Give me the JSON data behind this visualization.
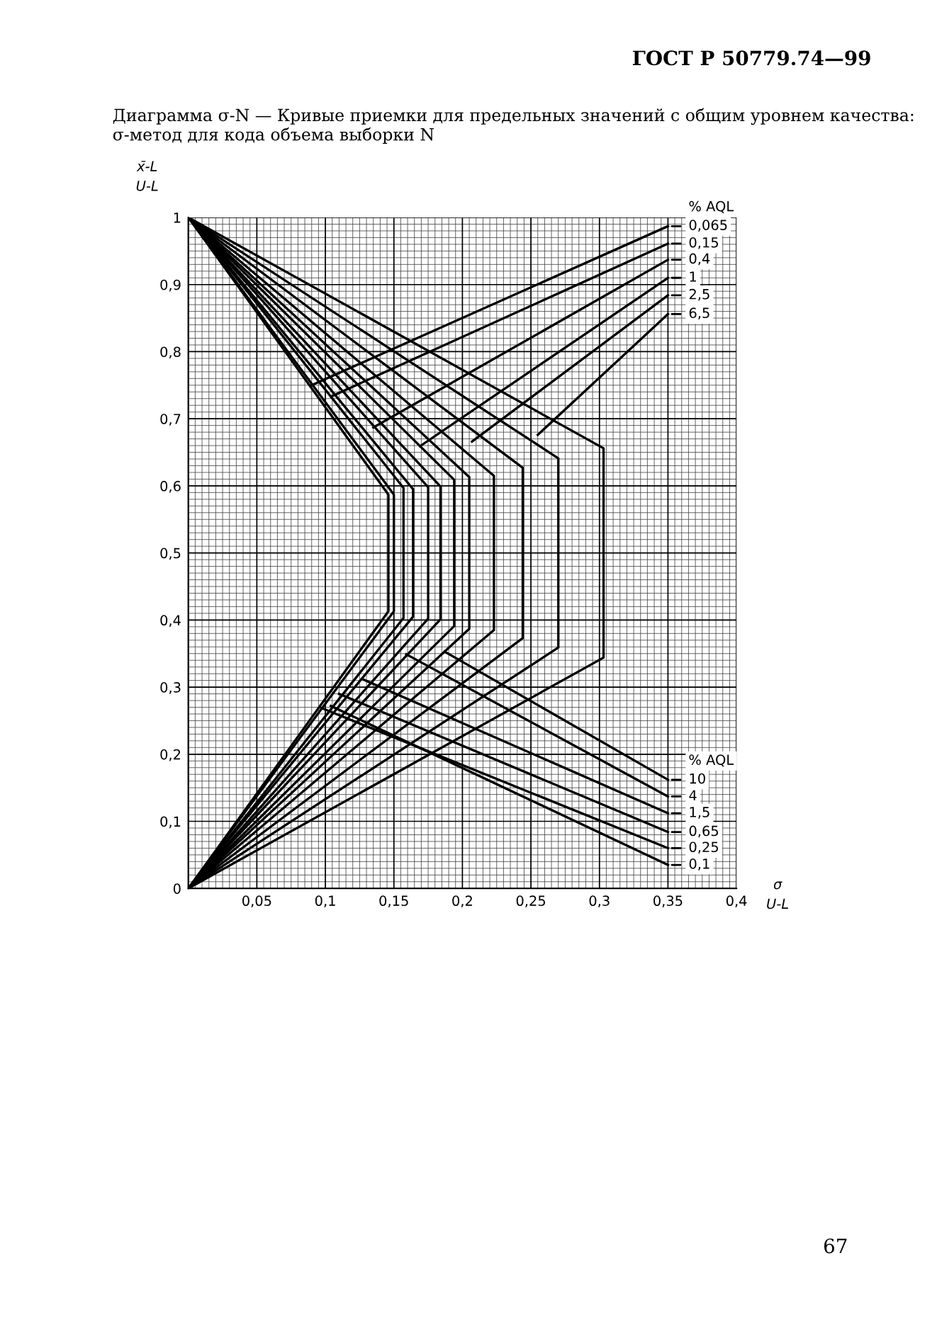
{
  "chart_data": {
    "type": "line",
    "title": "Диаграмма σ-N — Кривые приемки для предельных значений с общим уровнем качества: σ-метод для кода объема выборки N",
    "ylabel": "x̄-L\nU-L",
    "xlabel": "σ\nU-L",
    "annotations": [
      "ГОСТ Р 50779.74—99",
      "% AQL",
      "% AQL",
      "67"
    ],
    "xlim": [
      0,
      0.4
    ],
    "ylim": [
      0,
      1
    ],
    "xticks": [
      {
        "value": 0.05,
        "label": "0,05"
      },
      {
        "value": 0.1,
        "label": "0,1"
      },
      {
        "value": 0.15,
        "label": "0,15"
      },
      {
        "value": 0.2,
        "label": "0,2"
      },
      {
        "value": 0.25,
        "label": "0,25"
      },
      {
        "value": 0.3,
        "label": "0,3"
      },
      {
        "value": 0.35,
        "label": "0,35"
      },
      {
        "value": 0.4,
        "label": "0,4"
      }
    ],
    "yticks": [
      0,
      {
        "value": 0.1,
        "label": "0,1"
      },
      {
        "value": 0.2,
        "label": "0,2"
      },
      {
        "value": 0.3,
        "label": "0,3"
      },
      {
        "value": 0.4,
        "label": "0,4"
      },
      {
        "value": 0.5,
        "label": "0,5"
      },
      {
        "value": 0.6,
        "label": "0,6"
      },
      {
        "value": 0.7,
        "label": "0,7"
      },
      {
        "value": 0.8,
        "label": "0,8"
      },
      {
        "value": 0.9,
        "label": "0,9"
      },
      1
    ],
    "grid": true,
    "legend": "right",
    "marker": "none",
    "line_style": "solid",
    "series": [
      {
        "name": "0,065",
        "color": "#000000",
        "x": [
          0,
          0.146,
          0.146,
          0,
          null,
          0.09,
          0.35
        ],
        "values": [
          1,
          0.587,
          0.413,
          0,
          null,
          0.75,
          0.987
        ]
      },
      {
        "name": "0,1",
        "color": "#000000",
        "x": [
          0,
          0.15,
          0.15,
          0,
          null,
          0.104,
          0.35
        ],
        "values": [
          1,
          0.587,
          0.413,
          0,
          null,
          0.272,
          0.035
        ]
      },
      {
        "name": "0,15",
        "color": "#000000",
        "x": [
          0,
          0.157,
          0.157,
          0,
          null,
          0.104,
          0.35
        ],
        "values": [
          1,
          0.597,
          0.403,
          0,
          null,
          0.733,
          0.961
        ]
      },
      {
        "name": "0,25",
        "color": "#000000",
        "x": [
          0,
          0.164,
          0.164,
          0,
          null,
          0.097,
          0.35
        ],
        "values": [
          1,
          0.595,
          0.405,
          0,
          null,
          0.269,
          0.06
        ]
      },
      {
        "name": "0,4",
        "color": "#000000",
        "x": [
          0,
          0.175,
          0.175,
          0,
          null,
          0.135,
          0.35
        ],
        "values": [
          1,
          0.598,
          0.402,
          0,
          null,
          0.687,
          0.937
        ]
      },
      {
        "name": "0,65",
        "color": "#000000",
        "x": [
          0,
          0.184,
          0.184,
          0,
          null,
          0.11,
          0.35
        ],
        "values": [
          1,
          0.599,
          0.401,
          0,
          null,
          0.29,
          0.084
        ]
      },
      {
        "name": "1",
        "color": "#000000",
        "x": [
          0,
          0.194,
          0.194,
          0,
          null,
          0.169,
          0.35
        ],
        "values": [
          1,
          0.609,
          0.391,
          0,
          null,
          0.659,
          0.91
        ]
      },
      {
        "name": "1,5",
        "color": "#000000",
        "x": [
          0,
          0.205,
          0.205,
          0,
          null,
          0.128,
          0.35
        ],
        "values": [
          1,
          0.613,
          0.387,
          0,
          null,
          0.311,
          0.112
        ]
      },
      {
        "name": "2,5",
        "color": "#000000",
        "x": [
          0,
          0.223,
          0.223,
          0,
          null,
          0.207,
          0.35
        ],
        "values": [
          1,
          0.615,
          0.385,
          0,
          null,
          0.666,
          0.884
        ]
      },
      {
        "name": "4",
        "color": "#000000",
        "x": [
          0,
          0.244,
          0.244,
          0,
          null,
          0.159,
          0.35
        ],
        "values": [
          1,
          0.627,
          0.373,
          0,
          null,
          0.349,
          0.137
        ]
      },
      {
        "name": "6,5",
        "color": "#000000",
        "x": [
          0,
          0.27,
          0.27,
          0,
          null,
          0.255,
          0.35
        ],
        "values": [
          1,
          0.641,
          0.359,
          0,
          null,
          0.676,
          0.856
        ]
      },
      {
        "name": "10",
        "color": "#000000",
        "x": [
          0,
          0.303,
          0.303,
          0,
          null,
          0.187,
          0.35
        ],
        "values": [
          1,
          0.656,
          0.344,
          0,
          null,
          0.353,
          0.162
        ]
      }
    ]
  }
}
